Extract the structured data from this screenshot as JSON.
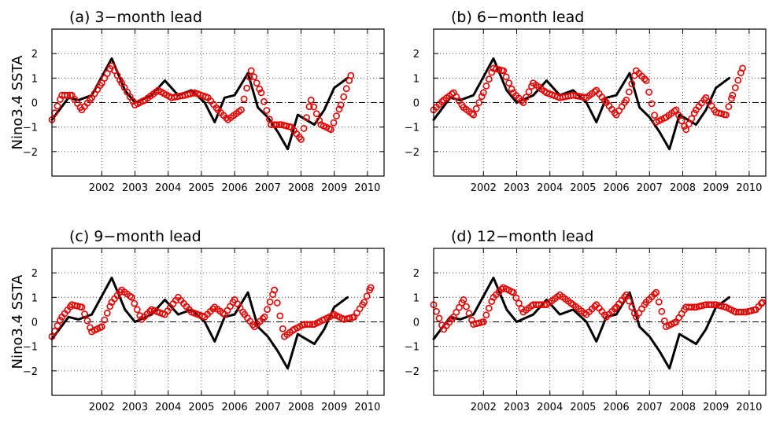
{
  "chart_data": [
    {
      "type": "line",
      "title": "(a) 3−month lead",
      "ylabel": "Nino3.4  SSTA",
      "xlim": [
        2001.0,
        2011.0
      ],
      "ylim": [
        -3,
        3
      ],
      "xticks": [
        "2002",
        "2003",
        "2004",
        "2005",
        "2006",
        "2007",
        "2008",
        "2009",
        "2010"
      ],
      "yticks": [
        "2",
        "1",
        "0",
        "−1",
        "−2"
      ],
      "grid": true,
      "zero_line": "dash-dot",
      "series": [
        {
          "style": "solid",
          "color": "#000000",
          "x": [
            2001.0,
            2001.5,
            2001.8,
            2002.2,
            2002.8,
            2003.2,
            2003.5,
            2004.0,
            2004.4,
            2004.8,
            2005.2,
            2005.6,
            2005.9,
            2006.2,
            2006.5,
            2006.9,
            2007.2,
            2007.5,
            2007.8,
            2008.1,
            2008.4,
            2008.9,
            2009.2,
            2009.5,
            2009.9
          ],
          "y": [
            -0.7,
            0.2,
            0.1,
            0.3,
            1.8,
            0.5,
            0.0,
            0.3,
            0.9,
            0.3,
            0.5,
            0.0,
            -0.8,
            0.2,
            0.3,
            1.2,
            -0.2,
            -0.6,
            -1.2,
            -1.9,
            -0.5,
            -0.9,
            -0.3,
            0.6,
            1.0
          ]
        },
        {
          "style": "circles",
          "color": "#e60000",
          "x": [
            2001.0,
            2001.3,
            2001.6,
            2001.9,
            2002.2,
            2002.5,
            2002.8,
            2003.1,
            2003.5,
            2003.8,
            2004.2,
            2004.6,
            2005.0,
            2005.3,
            2005.7,
            2006.0,
            2006.3,
            2006.7,
            2007.0,
            2007.3,
            2007.6,
            2007.9,
            2008.2,
            2008.5,
            2008.8,
            2009.1,
            2009.4,
            2009.7,
            2010.0
          ],
          "y": [
            -0.7,
            0.3,
            0.3,
            -0.3,
            0.2,
            0.8,
            1.5,
            0.8,
            -0.1,
            0.1,
            0.5,
            0.2,
            0.3,
            0.4,
            0.2,
            -0.3,
            -0.7,
            -0.3,
            1.3,
            0.4,
            -0.9,
            -0.9,
            -1.0,
            -1.5,
            0.1,
            -0.9,
            -1.1,
            -0.1,
            1.1
          ]
        }
      ]
    },
    {
      "type": "line",
      "title": "(b) 6−month lead",
      "ylabel": "",
      "xlim": [
        2001.0,
        2011.0
      ],
      "ylim": [
        -3,
        3
      ],
      "xticks": [
        "2002",
        "2003",
        "2004",
        "2005",
        "2006",
        "2007",
        "2008",
        "2009",
        "2010"
      ],
      "yticks": [
        "2",
        "1",
        "0",
        "−1",
        "−2"
      ],
      "grid": true,
      "zero_line": "dash-dot",
      "series": [
        {
          "style": "solid",
          "color": "#000000",
          "x": [
            2001.0,
            2001.5,
            2001.8,
            2002.2,
            2002.8,
            2003.2,
            2003.5,
            2004.0,
            2004.4,
            2004.8,
            2005.2,
            2005.6,
            2005.9,
            2006.2,
            2006.5,
            2006.9,
            2007.2,
            2007.5,
            2007.8,
            2008.1,
            2008.4,
            2008.9,
            2009.2,
            2009.5,
            2009.9
          ],
          "y": [
            -0.7,
            0.2,
            0.1,
            0.3,
            1.8,
            0.5,
            0.0,
            0.3,
            0.9,
            0.3,
            0.5,
            0.0,
            -0.8,
            0.2,
            0.3,
            1.2,
            -0.2,
            -0.6,
            -1.2,
            -1.9,
            -0.5,
            -0.9,
            -0.3,
            0.6,
            1.0
          ]
        },
        {
          "style": "circles",
          "color": "#e60000",
          "x": [
            2001.0,
            2001.3,
            2001.6,
            2001.9,
            2002.2,
            2002.5,
            2002.8,
            2003.1,
            2003.4,
            2003.7,
            2004.0,
            2004.4,
            2004.8,
            2005.2,
            2005.6,
            2005.9,
            2006.2,
            2006.5,
            2006.8,
            2007.1,
            2007.4,
            2007.7,
            2008.0,
            2008.3,
            2008.6,
            2008.9,
            2009.2,
            2009.5,
            2009.8,
            2010.0,
            2010.3
          ],
          "y": [
            -0.3,
            0.1,
            0.4,
            -0.2,
            -0.5,
            0.4,
            1.4,
            1.3,
            0.4,
            0.0,
            0.8,
            0.4,
            0.2,
            0.3,
            0.2,
            0.5,
            0.0,
            -0.5,
            0.1,
            1.3,
            0.9,
            -0.8,
            -0.6,
            -0.3,
            -1.1,
            -0.3,
            0.2,
            -0.4,
            -0.5,
            0.3,
            1.4
          ]
        }
      ]
    },
    {
      "type": "line",
      "title": "(c) 9−month lead",
      "ylabel": "Nino3.4  SSTA",
      "xlim": [
        2001.0,
        2011.0
      ],
      "ylim": [
        -3,
        3
      ],
      "xticks": [
        "2002",
        "2003",
        "2004",
        "2005",
        "2006",
        "2007",
        "2008",
        "2009",
        "2010"
      ],
      "yticks": [
        "2",
        "1",
        "0",
        "−1",
        "−2"
      ],
      "grid": true,
      "zero_line": "dash-dot",
      "series": [
        {
          "style": "solid",
          "color": "#000000",
          "x": [
            2001.0,
            2001.5,
            2001.8,
            2002.2,
            2002.8,
            2003.2,
            2003.5,
            2004.0,
            2004.4,
            2004.8,
            2005.2,
            2005.6,
            2005.9,
            2006.2,
            2006.5,
            2006.9,
            2007.2,
            2007.5,
            2007.8,
            2008.1,
            2008.4,
            2008.9,
            2009.2,
            2009.5,
            2009.9
          ],
          "y": [
            -0.7,
            0.2,
            0.1,
            0.3,
            1.8,
            0.5,
            0.0,
            0.3,
            0.9,
            0.3,
            0.5,
            0.0,
            -0.8,
            0.2,
            0.3,
            1.2,
            -0.2,
            -0.6,
            -1.2,
            -1.9,
            -0.5,
            -0.9,
            -0.3,
            0.6,
            1.0
          ]
        },
        {
          "style": "circles",
          "color": "#e60000",
          "x": [
            2001.0,
            2001.3,
            2001.6,
            2001.9,
            2002.2,
            2002.5,
            2002.8,
            2003.1,
            2003.4,
            2003.7,
            2004.0,
            2004.4,
            2004.8,
            2005.2,
            2005.6,
            2005.9,
            2006.2,
            2006.5,
            2006.8,
            2007.1,
            2007.4,
            2007.7,
            2008.0,
            2008.3,
            2008.6,
            2008.9,
            2009.2,
            2009.5,
            2009.8,
            2010.1,
            2010.4,
            2010.6
          ],
          "y": [
            -0.6,
            0.2,
            0.7,
            0.6,
            -0.4,
            -0.2,
            0.8,
            1.3,
            1.0,
            0.1,
            0.5,
            0.3,
            1.0,
            0.4,
            0.2,
            0.6,
            0.3,
            0.9,
            0.3,
            -0.2,
            0.2,
            1.3,
            -0.6,
            -0.3,
            -0.1,
            -0.1,
            0.1,
            0.3,
            0.1,
            0.2,
            0.8,
            1.4
          ]
        }
      ]
    },
    {
      "type": "line",
      "title": "(d) 12−month lead",
      "ylabel": "",
      "xlim": [
        2001.0,
        2011.0
      ],
      "ylim": [
        -3,
        3
      ],
      "xticks": [
        "2002",
        "2003",
        "2004",
        "2005",
        "2006",
        "2007",
        "2008",
        "2009",
        "2010"
      ],
      "yticks": [
        "2",
        "1",
        "0",
        "−1",
        "−2"
      ],
      "grid": true,
      "zero_line": "dash-dot",
      "series": [
        {
          "style": "solid",
          "color": "#000000",
          "x": [
            2001.0,
            2001.5,
            2001.8,
            2002.2,
            2002.8,
            2003.2,
            2003.5,
            2004.0,
            2004.4,
            2004.8,
            2005.2,
            2005.6,
            2005.9,
            2006.2,
            2006.5,
            2006.9,
            2007.2,
            2007.5,
            2007.8,
            2008.1,
            2008.4,
            2008.9,
            2009.2,
            2009.5,
            2009.9
          ],
          "y": [
            -0.7,
            0.2,
            0.1,
            0.3,
            1.8,
            0.5,
            0.0,
            0.3,
            0.9,
            0.3,
            0.5,
            0.0,
            -0.8,
            0.2,
            0.3,
            1.2,
            -0.2,
            -0.6,
            -1.2,
            -1.9,
            -0.5,
            -0.9,
            -0.3,
            0.6,
            1.0
          ]
        },
        {
          "style": "circles",
          "color": "#e60000",
          "x": [
            2001.0,
            2001.3,
            2001.6,
            2001.9,
            2002.2,
            2002.5,
            2002.8,
            2003.1,
            2003.4,
            2003.7,
            2004.0,
            2004.4,
            2004.8,
            2005.2,
            2005.6,
            2005.9,
            2006.2,
            2006.5,
            2006.8,
            2007.1,
            2007.4,
            2007.7,
            2008.0,
            2008.3,
            2008.6,
            2008.9,
            2009.2,
            2009.5,
            2009.8,
            2010.1,
            2010.4,
            2010.7,
            2010.9
          ],
          "y": [
            0.7,
            -0.3,
            0.2,
            0.9,
            -0.1,
            0.0,
            1.0,
            1.4,
            1.2,
            0.4,
            0.7,
            0.7,
            1.1,
            0.7,
            0.3,
            0.7,
            0.2,
            0.6,
            1.1,
            0.2,
            0.8,
            1.2,
            -0.2,
            0.0,
            0.6,
            0.6,
            0.7,
            0.7,
            0.6,
            0.4,
            0.4,
            0.5,
            0.8
          ]
        }
      ]
    }
  ]
}
